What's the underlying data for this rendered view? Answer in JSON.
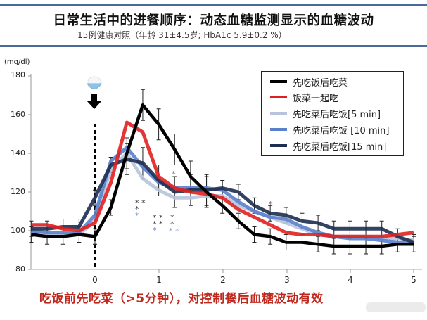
{
  "header": {
    "title": "日常生活中的进餐顺序：动态血糖监测显示的血糖波动",
    "subtitle": "15例健康对照（年龄 31±4.5岁; HbA1c 5.9±0.2 %）"
  },
  "caption": "吃饭前先吃菜（>5分钟），对控制餐后血糖波动有效",
  "icons": {
    "meal": "rice-bowl-icon",
    "arrow": "down-arrow-icon"
  },
  "chart_data": {
    "type": "line",
    "title": "日常生活中的进餐顺序：动态血糖监测显示的血糖波动",
    "subtitle": "15例健康对照（年龄 31±4.5岁; HbA1c 5.9±0.2 %）",
    "xlabel": "",
    "ylabel": "(mg/dl)",
    "ylim": [
      80,
      180
    ],
    "xlim": [
      -1,
      5
    ],
    "yticks": [
      "80",
      "100",
      "120",
      "140",
      "160",
      "180"
    ],
    "xticks": [
      "0",
      "1",
      "2",
      "3",
      "4",
      "5"
    ],
    "grid": false,
    "legend_position": "upper right",
    "annotations": [
      "meal at t=0 (dashed vertical line, rice bowl + arrow)",
      "significance asterisks near t=0.75–1.25 and t=1.25, t=2.75"
    ],
    "x": [
      -1,
      -0.75,
      -0.5,
      -0.25,
      0,
      0.25,
      0.5,
      0.75,
      1,
      1.25,
      1.5,
      1.75,
      2,
      2.25,
      2.5,
      2.75,
      3,
      3.25,
      3.5,
      3.75,
      4,
      4.25,
      4.5,
      4.75,
      5
    ],
    "series": [
      {
        "name": "先吃饭后吃菜",
        "color": "#000000",
        "values": [
          98,
          97,
          97,
          98,
          97,
          112,
          140,
          165,
          155,
          142,
          128,
          120,
          113,
          105,
          98,
          97,
          94,
          94,
          93,
          92,
          92,
          92,
          92,
          93,
          93
        ]
      },
      {
        "name": "饭菜一起吃",
        "color": "#e02020",
        "values": [
          103,
          103,
          101,
          100,
          104,
          125,
          156,
          151,
          128,
          122,
          120,
          119,
          117,
          111,
          107,
          103,
          99,
          98,
          98,
          97,
          97,
          97,
          97,
          98,
          99
        ]
      },
      {
        "name": "先吃菜后吃饭[5 min]",
        "color": "#b8c4dc",
        "values": [
          99,
          98,
          98,
          98,
          105,
          132,
          140,
          127,
          121,
          117,
          117,
          118,
          118,
          113,
          110,
          107,
          104,
          101,
          98,
          97,
          97,
          97,
          96,
          96,
          95
        ]
      },
      {
        "name": "先吃菜后吃饭 [10 min]",
        "color": "#5a7fcc",
        "values": [
          100,
          99,
          99,
          99,
          108,
          136,
          143,
          133,
          125,
          122,
          122,
          122,
          121,
          115,
          110,
          107,
          106,
          102,
          99,
          97,
          96,
          96,
          95,
          94,
          94
        ]
      },
      {
        "name": "先吃菜后吃饭[15 min]",
        "color": "#1e2e50",
        "values": [
          101,
          101,
          102,
          102,
          117,
          134,
          137,
          135,
          126,
          120,
          121,
          121,
          122,
          120,
          113,
          109,
          108,
          105,
          104,
          101,
          101,
          101,
          101,
          97,
          94
        ]
      }
    ]
  },
  "legend": {
    "items": [
      {
        "label": "先吃饭后吃菜",
        "color": "#000000"
      },
      {
        "label": "饭菜一起吃",
        "color": "#e02020"
      },
      {
        "label": "先吃菜后吃饭[5 min]",
        "color": "#b8c4dc"
      },
      {
        "label": "先吃菜后吃饭 [10 min]",
        "color": "#5a7fcc"
      },
      {
        "label": "先吃菜后吃饭[15 min]",
        "color": "#1e2e50"
      }
    ]
  },
  "axis": {
    "unit": "(mg/dl)",
    "yticks": [
      "180",
      "160",
      "140",
      "120",
      "100",
      "80"
    ],
    "xticks": [
      "0",
      "1",
      "2",
      "3",
      "4",
      "5"
    ]
  }
}
